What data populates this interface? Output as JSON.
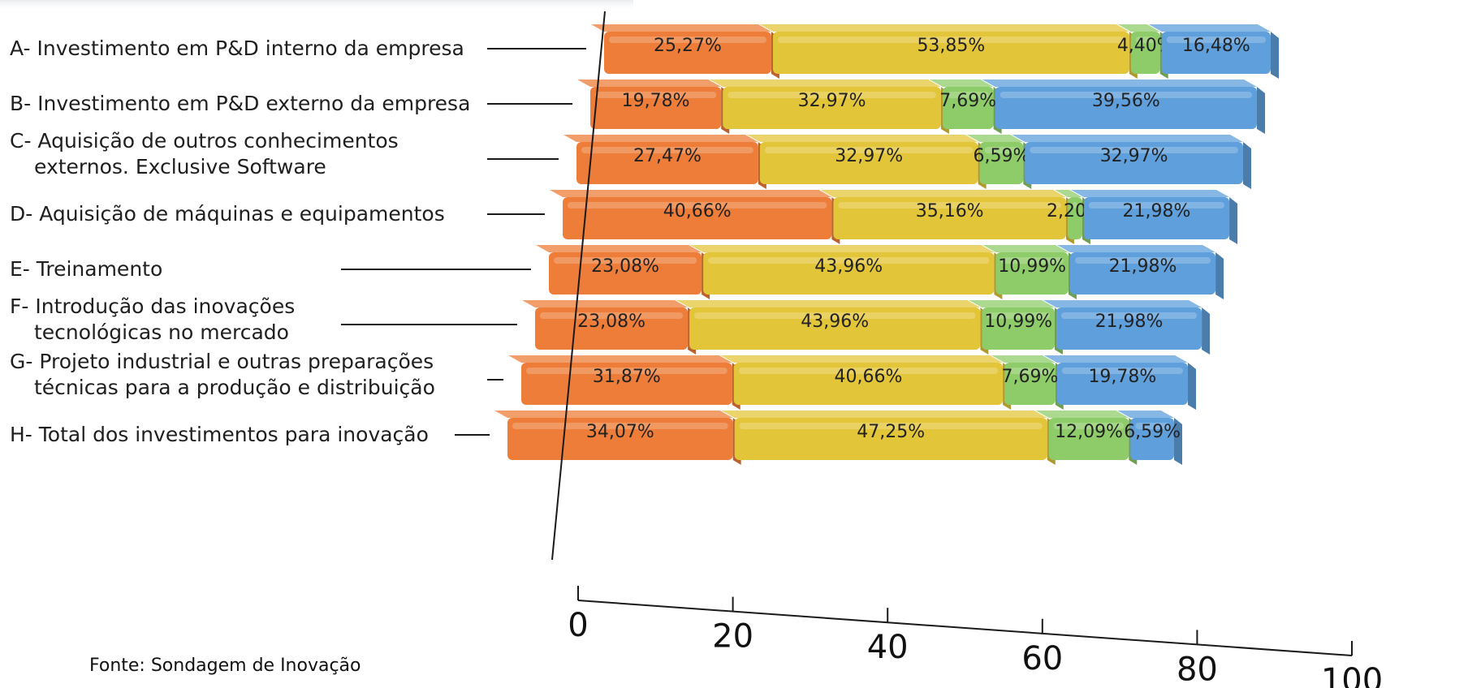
{
  "chart_data": {
    "type": "bar",
    "orientation": "horizontal-stacked",
    "categories": [
      [
        "A- Investimento em P&D interno da empresa"
      ],
      [
        "B- Investimento em P&D externo da empresa"
      ],
      [
        "C- Aquisição de outros conhecimentos",
        "externos. Exclusive Software"
      ],
      [
        "D- Aquisição de máquinas e equipamentos"
      ],
      [
        "E- Treinamento"
      ],
      [
        "F- Introdução das inovações",
        "tecnológicas no mercado"
      ],
      [
        "G- Projeto industrial e outras preparações",
        "técnicas para a produção e distribuição"
      ],
      [
        "H- Total dos investimentos para inovação"
      ]
    ],
    "series": [
      {
        "color": "#ee7d3a",
        "values": [
          25.27,
          19.78,
          27.47,
          40.66,
          23.08,
          23.08,
          31.87,
          34.07
        ]
      },
      {
        "color": "#e3c53a",
        "values": [
          53.85,
          32.97,
          32.97,
          35.16,
          43.96,
          43.96,
          40.66,
          47.25
        ]
      },
      {
        "color": "#8ecc6a",
        "values": [
          4.4,
          7.69,
          6.59,
          2.2,
          10.99,
          10.99,
          7.69,
          12.09
        ]
      },
      {
        "color": "#5f9fdc",
        "values": [
          16.48,
          39.56,
          32.97,
          21.98,
          21.98,
          21.98,
          19.78,
          6.59
        ]
      }
    ],
    "data_labels": [
      [
        "25,27%",
        "53,85%",
        "4,40%",
        "16,48%"
      ],
      [
        "19,78%",
        "32,97%",
        "7,69%",
        "39,56%"
      ],
      [
        "27,47%",
        "32,97%",
        "6,59%",
        "32,97%"
      ],
      [
        "40,66%",
        "35,16%",
        "2,20%",
        "21,98%"
      ],
      [
        "23,08%",
        "43,96%",
        "10,99%",
        "21,98%"
      ],
      [
        "23,08%",
        "43,96%",
        "10,99%",
        "21,98%"
      ],
      [
        "31,87%",
        "40,66%",
        "7,69%",
        "19,78%"
      ],
      [
        "34,07%",
        "47,25%",
        "12,09%",
        "6,59%"
      ]
    ],
    "x_ticks": [
      "0",
      "20",
      "40",
      "60",
      "80",
      "100"
    ],
    "xlim": [
      0,
      100
    ],
    "legend": "none",
    "grid": false
  },
  "source_text": "Fonte: Sondagem de Inovação"
}
